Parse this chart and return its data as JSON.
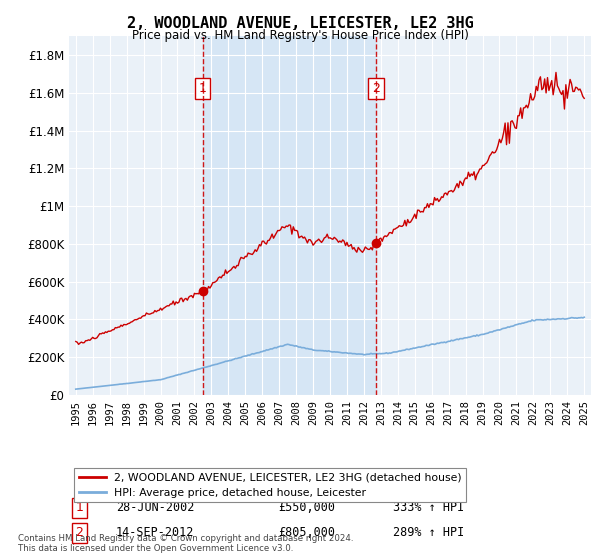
{
  "title": "2, WOODLAND AVENUE, LEICESTER, LE2 3HG",
  "subtitle": "Price paid vs. HM Land Registry's House Price Index (HPI)",
  "legend_line1": "2, WOODLAND AVENUE, LEICESTER, LE2 3HG (detached house)",
  "legend_line2": "HPI: Average price, detached house, Leicester",
  "ann1_label": "1",
  "ann1_date": "28-JUN-2002",
  "ann1_price": "£550,000",
  "ann1_hpi": "333% ↑ HPI",
  "ann1_x": 2002.49,
  "ann1_y": 550000,
  "ann2_label": "2",
  "ann2_date": "14-SEP-2012",
  "ann2_price": "£805,000",
  "ann2_hpi": "289% ↑ HPI",
  "ann2_x": 2012.71,
  "ann2_y": 805000,
  "footer": "Contains HM Land Registry data © Crown copyright and database right 2024.\nThis data is licensed under the Open Government Licence v3.0.",
  "hpi_color": "#7aaddb",
  "price_color": "#cc0000",
  "shade_color": "#d6e6f5",
  "background_plot": "#eaf1f8",
  "background_fig": "#ffffff",
  "ylim": [
    0,
    1900000
  ],
  "yticks": [
    0,
    200000,
    400000,
    600000,
    800000,
    1000000,
    1200000,
    1400000,
    1600000,
    1800000
  ],
  "xlim_start": 1994.6,
  "xlim_end": 2025.4,
  "dashed_x1": 2002.49,
  "dashed_x2": 2012.71
}
